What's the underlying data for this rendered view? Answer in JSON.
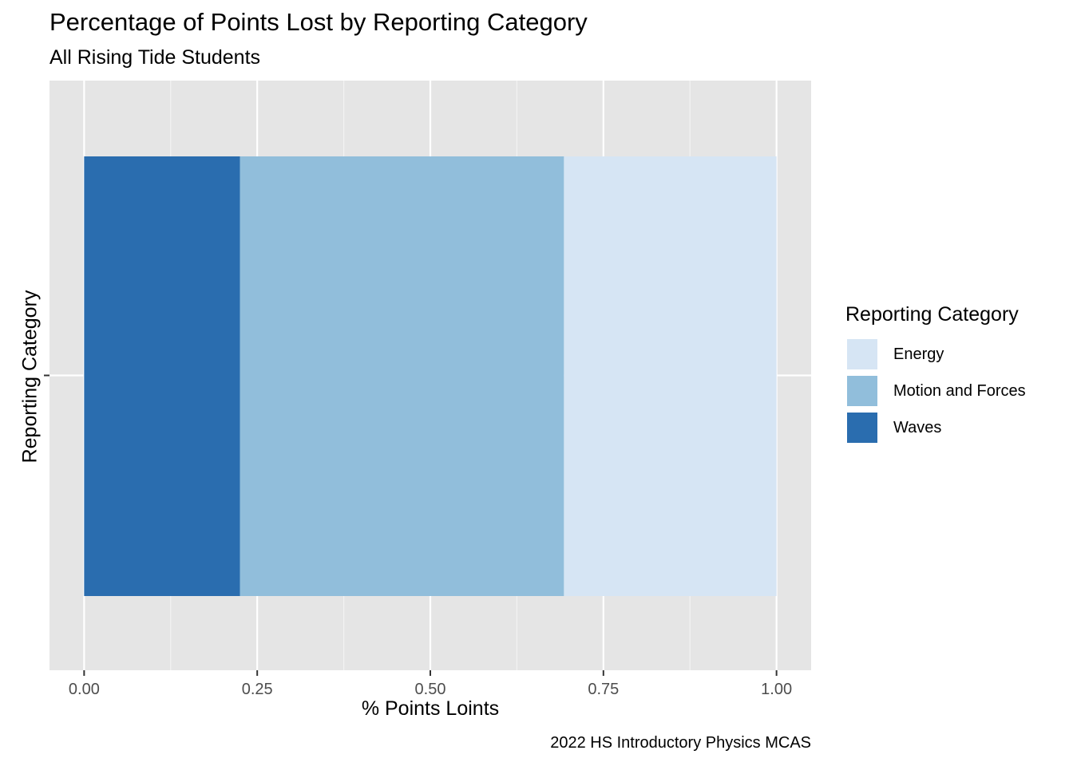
{
  "chart_data": {
    "type": "bar",
    "orientation": "horizontal",
    "stacked": true,
    "title": "Percentage of Points Lost by Reporting Category",
    "subtitle": "All Rising Tide Students",
    "xlabel": "% Points Loints",
    "ylabel": "Reporting Category",
    "caption": "2022 HS Introductory Physics MCAS",
    "xlim": [
      -0.05,
      1.05
    ],
    "xticks": [
      "0.00",
      "0.25",
      "0.50",
      "0.75",
      "1.00"
    ],
    "grid": true,
    "legend_position": "right",
    "legend_title": "Reporting Category",
    "legend": [
      {
        "name": "Energy",
        "color": "#d6e5f4"
      },
      {
        "name": "Motion and Forces",
        "color": "#91bedb"
      },
      {
        "name": "Waves",
        "color": "#2a6daf"
      }
    ],
    "series": [
      {
        "name": "Waves",
        "start": 0.0,
        "end": 0.225,
        "color": "#2a6daf"
      },
      {
        "name": "Motion and Forces",
        "start": 0.225,
        "end": 0.693,
        "color": "#91bedb"
      },
      {
        "name": "Energy",
        "start": 0.693,
        "end": 1.0,
        "color": "#d6e5f4"
      }
    ]
  }
}
